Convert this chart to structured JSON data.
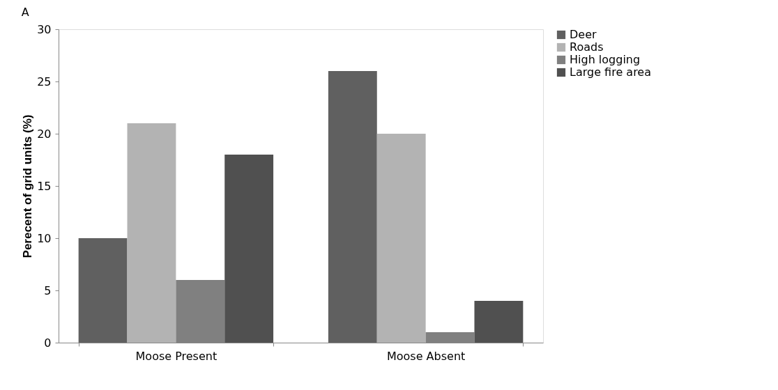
{
  "chart_data": {
    "type": "bar",
    "title": "A",
    "ylabel": "Perecent of grid units (%)",
    "categories": [
      "Moose Present",
      "Moose Absent"
    ],
    "series": [
      {
        "name": "Deer",
        "color": "#606060",
        "values": [
          10,
          26
        ]
      },
      {
        "name": "Roads",
        "color": "#b3b3b3",
        "values": [
          21,
          20
        ]
      },
      {
        "name": "High logging",
        "color": "#808080",
        "values": [
          6,
          1
        ]
      },
      {
        "name": "Large fire area",
        "color": "#505050",
        "values": [
          18,
          4
        ]
      }
    ],
    "ylim": [
      0,
      30
    ],
    "yticks": [
      0,
      5,
      10,
      15,
      20,
      25,
      30
    ],
    "grid": false,
    "legend": "right"
  }
}
